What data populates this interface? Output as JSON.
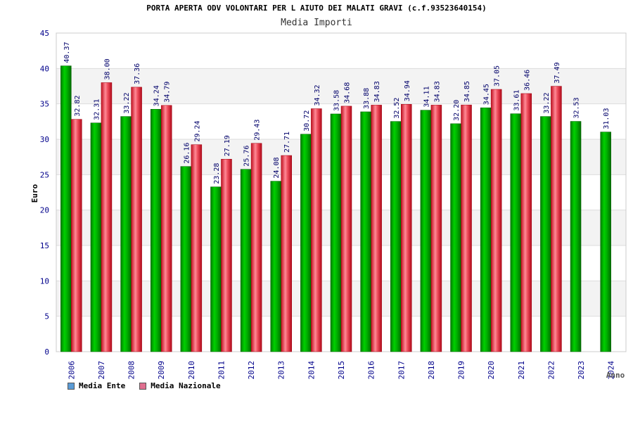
{
  "chart_data": {
    "type": "bar",
    "title": "PORTA APERTA ODV VOLONTARI PER L AIUTO DEI MALATI GRAVI (c.f.93523640154)",
    "subtitle": "Media Importi",
    "xlabel": "Anno",
    "ylabel": "Euro",
    "ylim": [
      0,
      45
    ],
    "yticks": [
      0,
      5,
      10,
      15,
      20,
      25,
      30,
      35,
      40,
      45
    ],
    "categories": [
      "2006",
      "2007",
      "2008",
      "2009",
      "2010",
      "2011",
      "2012",
      "2013",
      "2014",
      "2015",
      "2016",
      "2017",
      "2018",
      "2019",
      "2020",
      "2021",
      "2022",
      "2023",
      "2024"
    ],
    "series": [
      {
        "name": "Media Ente",
        "color": "#00a000",
        "values": [
          40.37,
          32.31,
          33.22,
          34.24,
          26.16,
          23.28,
          25.76,
          24.08,
          30.72,
          33.58,
          33.88,
          32.52,
          34.11,
          32.2,
          34.45,
          33.61,
          33.22,
          32.53,
          31.03
        ]
      },
      {
        "name": "Media Nazionale",
        "color": "#e0303c",
        "values": [
          32.82,
          38.0,
          37.36,
          34.79,
          29.24,
          27.19,
          29.43,
          27.71,
          34.32,
          34.68,
          34.83,
          34.94,
          34.83,
          34.85,
          37.05,
          36.46,
          37.49,
          null,
          null
        ]
      }
    ],
    "value_labels": {
      "ente": [
        "40.37",
        "32.31",
        "33.22",
        "34.24",
        "26.16",
        "23.28",
        "25.76",
        "24.08",
        "30.72",
        "33.58",
        "33.88",
        "32.52",
        "34.11",
        "32.20",
        "34.45",
        "33.61",
        "33.22",
        "32.53",
        "31.03"
      ],
      "nazionale": [
        "32.82",
        "38.00",
        "37.36",
        "34.79",
        "29.24",
        "27.19",
        "29.43",
        "27.71",
        "34.32",
        "34.68",
        "34.83",
        "34.94",
        "34.83",
        "34.85",
        "37.05",
        "36.46",
        "37.49",
        "",
        ""
      ]
    },
    "legend": [
      {
        "label": "Media Ente",
        "color": "#5b9bd5"
      },
      {
        "label": "Media Nazionale",
        "color": "#e07090"
      }
    ],
    "legend_position": "bottom-left",
    "grid": true
  }
}
